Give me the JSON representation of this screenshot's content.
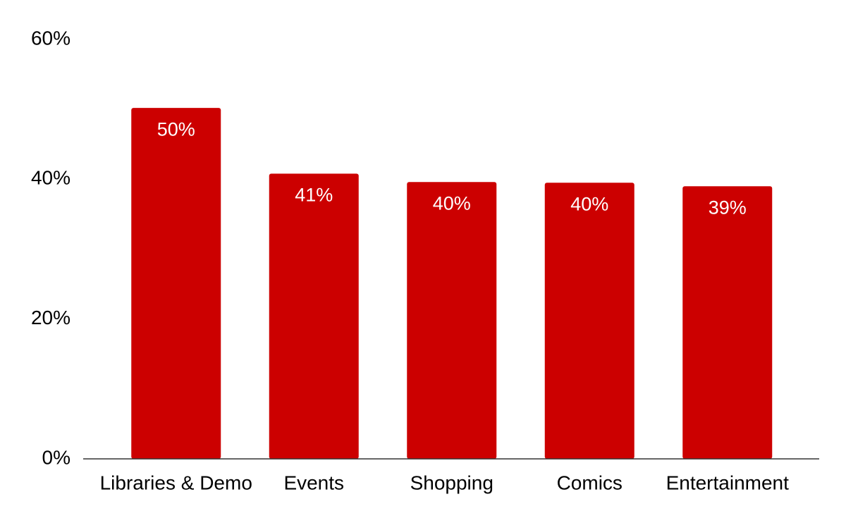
{
  "chart_data": {
    "type": "bar",
    "categories": [
      "Libraries & Demo",
      "Events",
      "Shopping",
      "Comics",
      "Entertainment"
    ],
    "values": [
      50.2,
      40.8,
      39.6,
      39.5,
      39.0
    ],
    "value_labels": [
      "50%",
      "41%",
      "40%",
      "40%",
      "39%"
    ],
    "color": "#cc0000",
    "ylim": [
      0,
      60
    ],
    "yticks": [
      {
        "value": 0,
        "label": "0%"
      },
      {
        "value": 20,
        "label": "20%"
      },
      {
        "value": 40,
        "label": "40%"
      },
      {
        "value": 60,
        "label": "60%"
      }
    ],
    "grid": false
  }
}
